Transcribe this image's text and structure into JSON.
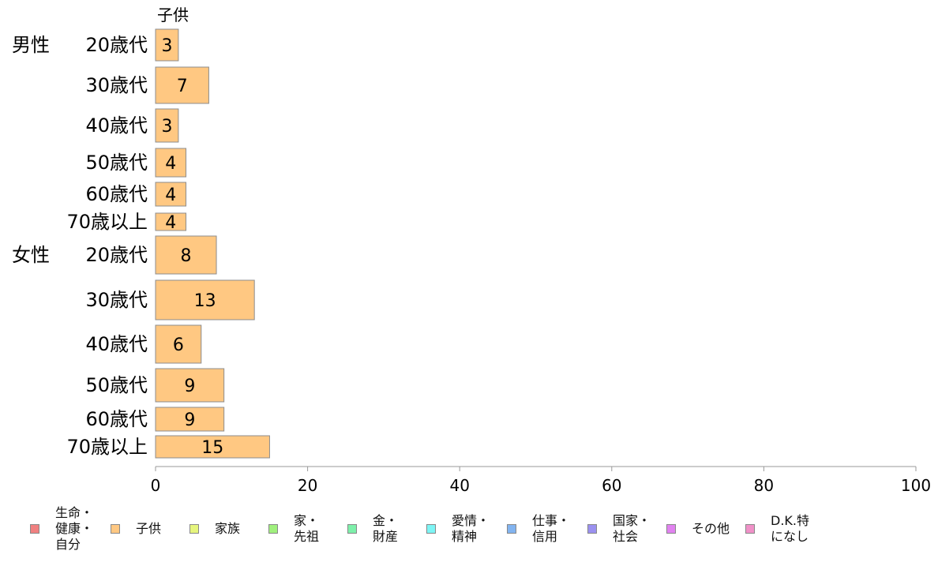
{
  "chart_data": {
    "type": "bar",
    "orientation": "horizontal",
    "series_title": "子供",
    "groups": [
      {
        "label": "男性",
        "categories": [
          "20歳代",
          "30歳代",
          "40歳代",
          "50歳代",
          "60歳代",
          "70歳以上"
        ],
        "values": [
          3,
          7,
          3,
          4,
          4,
          4
        ]
      },
      {
        "label": "女性",
        "categories": [
          "20歳代",
          "30歳代",
          "40歳代",
          "50歳代",
          "60歳代",
          "70歳以上"
        ],
        "values": [
          8,
          13,
          6,
          9,
          9,
          15
        ]
      }
    ],
    "xlim": [
      0,
      100
    ],
    "xticks": [
      0,
      20,
      40,
      60,
      80,
      100
    ],
    "grid": false,
    "bar_color": "#FFC882",
    "legend_position": "bottom",
    "legend": [
      {
        "label": "生命・\n健康・\n自分",
        "color": "#F08080"
      },
      {
        "label": "子供",
        "color": "#FFC882"
      },
      {
        "label": "家族",
        "color": "#E6F57D"
      },
      {
        "label": "家・\n先祖",
        "color": "#A0F07D"
      },
      {
        "label": "金・\n財産",
        "color": "#7DF0AA"
      },
      {
        "label": "愛情・\n精神",
        "color": "#7DF5F5"
      },
      {
        "label": "仕事・\n信用",
        "color": "#82B4F0"
      },
      {
        "label": "国家・\n社会",
        "color": "#9B91F0"
      },
      {
        "label": "その他",
        "color": "#E182F0"
      },
      {
        "label": "D.K.特\nになし",
        "color": "#F091C8"
      }
    ]
  }
}
